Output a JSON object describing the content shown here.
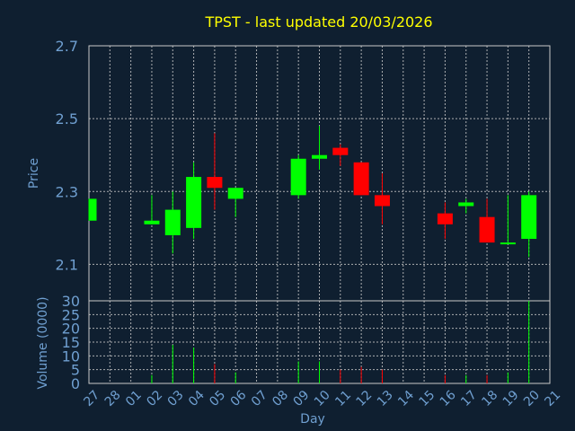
{
  "chart_data": {
    "title": "TPST - last updated 20/03/2026",
    "type": "candlestick",
    "xlabel": "Day",
    "price_panel": {
      "ylabel": "Price",
      "ylim": [
        2.0,
        2.7
      ],
      "yticks": [
        "2.7",
        "2.5",
        "2.3",
        "2.1"
      ],
      "ytick_values": [
        2.7,
        2.5,
        2.3,
        2.1
      ],
      "grid": true
    },
    "volume_panel": {
      "ylabel": "Volume (0000)",
      "ylim": [
        0,
        30
      ],
      "yticks": [
        "30",
        "25",
        "20",
        "15",
        "10",
        "5",
        "0"
      ],
      "ytick_values": [
        30,
        25,
        20,
        15,
        10,
        5,
        0
      ],
      "grid": true
    },
    "x_tick_labels": [
      "27",
      "28",
      "01",
      "02",
      "03",
      "04",
      "05",
      "06",
      "07",
      "08",
      "09",
      "10",
      "11",
      "12",
      "13",
      "14",
      "15",
      "16",
      "17",
      "18",
      "19",
      "20",
      "21"
    ],
    "candles": [
      {
        "day": "27",
        "open": 2.22,
        "close": 2.28,
        "high": 2.28,
        "low": 2.22,
        "volume": 0
      },
      {
        "day": "02",
        "open": 2.21,
        "close": 2.22,
        "high": 2.29,
        "low": 2.21,
        "volume": 3
      },
      {
        "day": "03",
        "open": 2.18,
        "close": 2.25,
        "high": 2.3,
        "low": 2.13,
        "volume": 14
      },
      {
        "day": "04",
        "open": 2.2,
        "close": 2.34,
        "high": 2.38,
        "low": 2.17,
        "volume": 13
      },
      {
        "day": "05",
        "open": 2.34,
        "close": 2.31,
        "high": 2.46,
        "low": 2.25,
        "volume": 7
      },
      {
        "day": "06",
        "open": 2.28,
        "close": 2.31,
        "high": 2.31,
        "low": 2.23,
        "volume": 4
      },
      {
        "day": "09",
        "open": 2.29,
        "close": 2.39,
        "high": 2.4,
        "low": 2.28,
        "volume": 8
      },
      {
        "day": "10",
        "open": 2.39,
        "close": 2.4,
        "high": 2.48,
        "low": 2.36,
        "volume": 8
      },
      {
        "day": "11",
        "open": 2.42,
        "close": 2.4,
        "high": 2.43,
        "low": 2.37,
        "volume": 5
      },
      {
        "day": "12",
        "open": 2.38,
        "close": 2.29,
        "high": 2.38,
        "low": 2.29,
        "volume": 6
      },
      {
        "day": "13",
        "open": 2.29,
        "close": 2.26,
        "high": 2.35,
        "low": 2.21,
        "volume": 5
      },
      {
        "day": "16",
        "open": 2.24,
        "close": 2.21,
        "high": 2.27,
        "low": 2.17,
        "volume": 3
      },
      {
        "day": "17",
        "open": 2.26,
        "close": 2.27,
        "high": 2.28,
        "low": 2.24,
        "volume": 3
      },
      {
        "day": "18",
        "open": 2.23,
        "close": 2.16,
        "high": 2.28,
        "low": 2.16,
        "volume": 3
      },
      {
        "day": "19",
        "open": 2.16,
        "close": 2.16,
        "high": 2.29,
        "low": 2.16,
        "volume": 4
      },
      {
        "day": "20",
        "open": 2.17,
        "close": 2.29,
        "high": 2.3,
        "low": 2.12,
        "volume": 30
      }
    ],
    "colors": {
      "up": "#00ff00",
      "down": "#ff0000",
      "background": "#0f1f30",
      "grid": "#c8c8c8",
      "text": "#6f9fd0",
      "title": "#ffff00"
    }
  }
}
